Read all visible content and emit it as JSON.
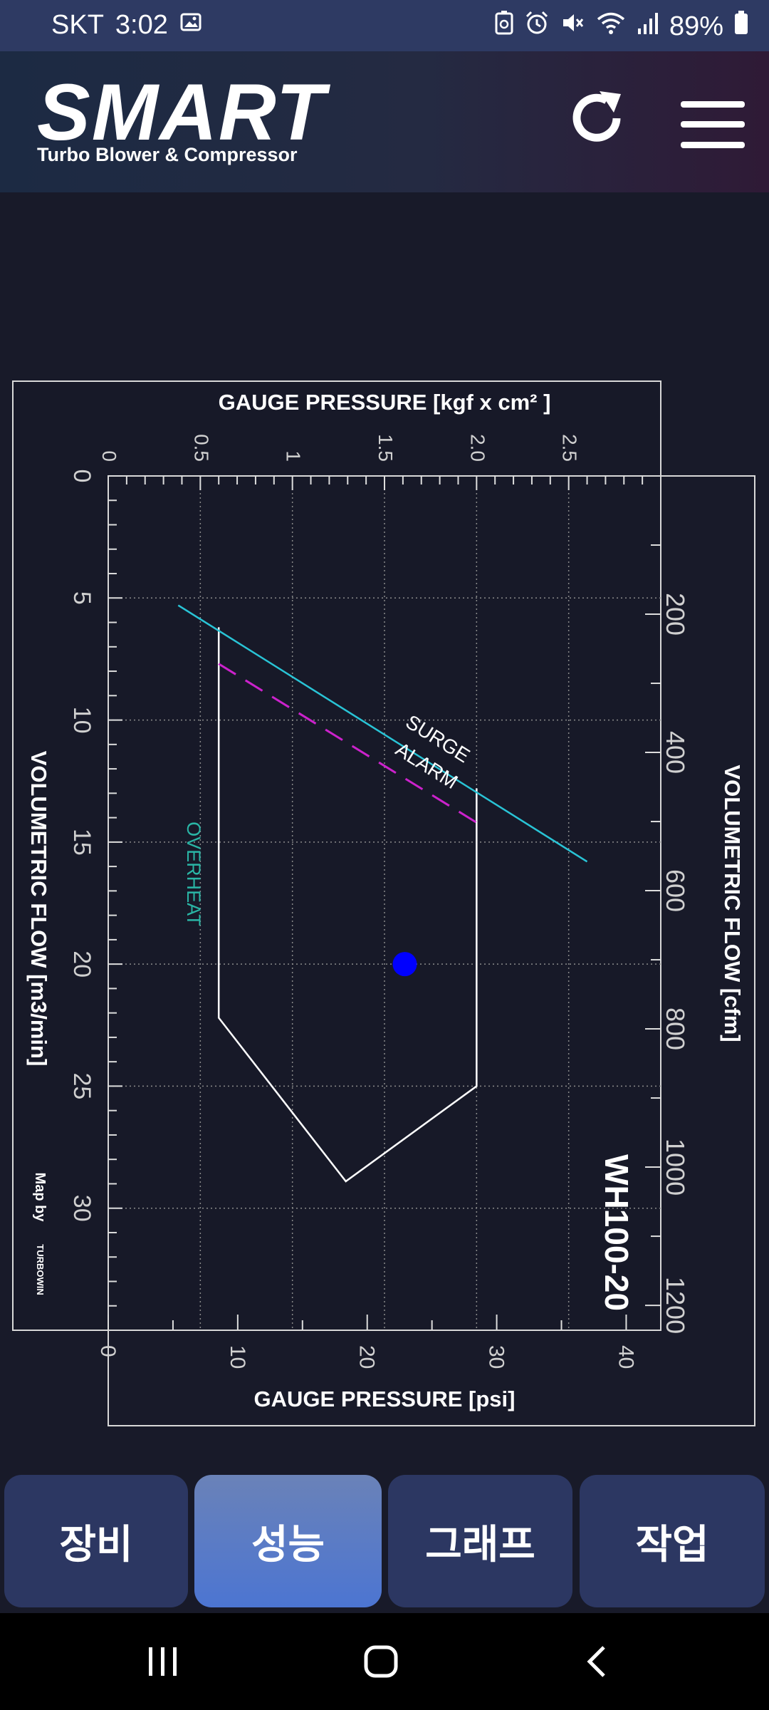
{
  "status_bar": {
    "carrier": "SKT",
    "time": "3:02",
    "battery": "89%",
    "icons": [
      "gallery-icon",
      "recycle-icon",
      "alarm-icon",
      "mute-icon",
      "wifi-icon",
      "signal-icon",
      "battery-icon"
    ]
  },
  "header": {
    "logo": "SMART",
    "subtitle": "Turbo Blower & Compressor",
    "icons": [
      "refresh-icon",
      "menu-icon"
    ]
  },
  "chart_data": {
    "type": "scatter",
    "title_top": "GAUGE PRESSURE [kgf x cm² ]",
    "top_ticks": [
      "0",
      "0.5",
      "1",
      "1.5",
      "2.0",
      "2.5"
    ],
    "title_bottom": "GAUGE PRESSURE [psi]",
    "bottom_ticks": [
      "0",
      "10",
      "20",
      "30",
      "40"
    ],
    "left_label": "VOLUMETRIC FLOW [m3/min]",
    "left_ticks": [
      "0",
      "5",
      "10",
      "15",
      "20",
      "25",
      "30"
    ],
    "right_label": "VOLUMETRIC FLOW [cfm]",
    "right_ticks": [
      "200",
      "400",
      "600",
      "800",
      "1000",
      "1200"
    ],
    "model": "WH100-20",
    "credit": "Map by",
    "credit_brand": "TURBOWIN",
    "xlim_kgf": [
      0,
      3.0
    ],
    "ylim_m3min": [
      0,
      35
    ],
    "grid": true,
    "labels": {
      "surge": "SURGE",
      "alarm": "ALARM",
      "overheat": "OVERHEAT"
    },
    "surge_line": [
      [
        0.38,
        5.3
      ],
      [
        2.6,
        15.8
      ]
    ],
    "alarm_line": [
      [
        0.6,
        7.7
      ],
      [
        2.0,
        14.2
      ]
    ],
    "operating_envelope": [
      [
        0.6,
        6.2
      ],
      [
        0.6,
        22.2
      ],
      [
        1.29,
        28.9
      ],
      [
        2.0,
        25.0
      ],
      [
        2.0,
        12.8
      ]
    ],
    "operating_point": {
      "x": 1.61,
      "y": 20.0
    },
    "colors": {
      "surge": "#29c4d6",
      "alarm": "#cc22cc",
      "overheat": "#2ab5a5",
      "envelope": "#ffffff",
      "point": "#0000ff"
    }
  },
  "bottom_nav": {
    "tabs": [
      {
        "label": "장비",
        "active": false
      },
      {
        "label": "성능",
        "active": true
      },
      {
        "label": "그래프",
        "active": false
      },
      {
        "label": "작업",
        "active": false
      }
    ]
  },
  "system_nav": {
    "icons": [
      "recents-icon",
      "home-icon",
      "back-icon"
    ]
  }
}
